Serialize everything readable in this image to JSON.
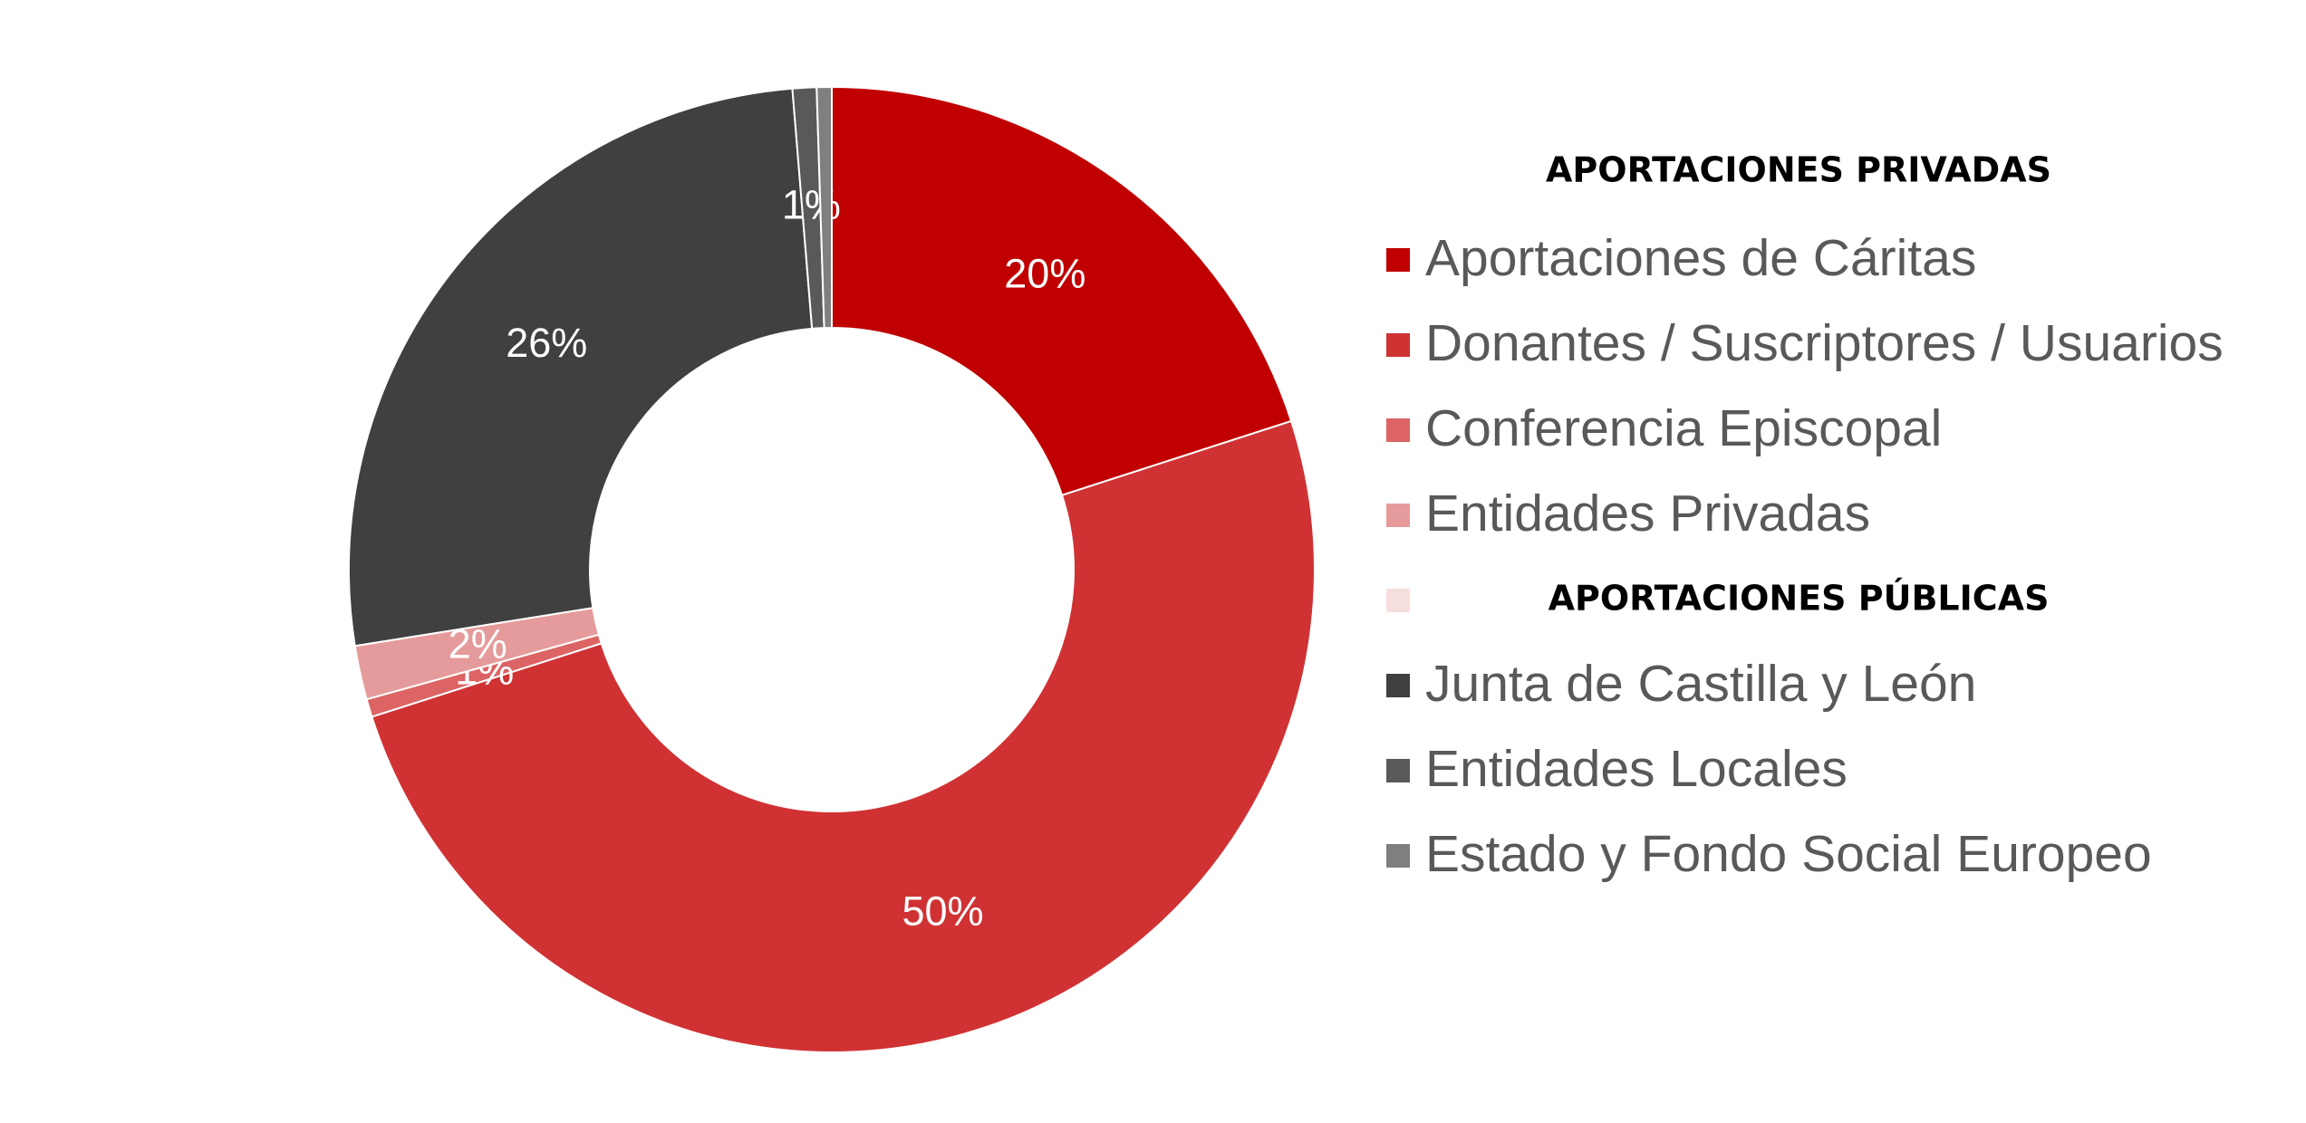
{
  "chart_data": {
    "type": "donut",
    "legend_title": "APORTACIONES PRIVADAS",
    "categories": [
      "Aportaciones de Cáritas",
      "Donantes / Suscriptores / Usuarios",
      "Conferencia Episcopal",
      "Entidades Privadas",
      "APORTACIONES PÚBLICAS",
      "Junta de Castilla y León",
      "Entidades Locales",
      "Estado y Fondo Social Europeo"
    ],
    "values": [
      20,
      50,
      0.6,
      1.8,
      0,
      26.2,
      0.8,
      0.5
    ],
    "value_labels": [
      "20%",
      "50%",
      "1%",
      "2%",
      null,
      "26%",
      "1%",
      null
    ],
    "colors": [
      "#c00000",
      "#d03234",
      "#dc6464",
      "#e59b9b",
      "#f6dede",
      "#404040",
      "#595959",
      "#7f7f7f"
    ]
  }
}
